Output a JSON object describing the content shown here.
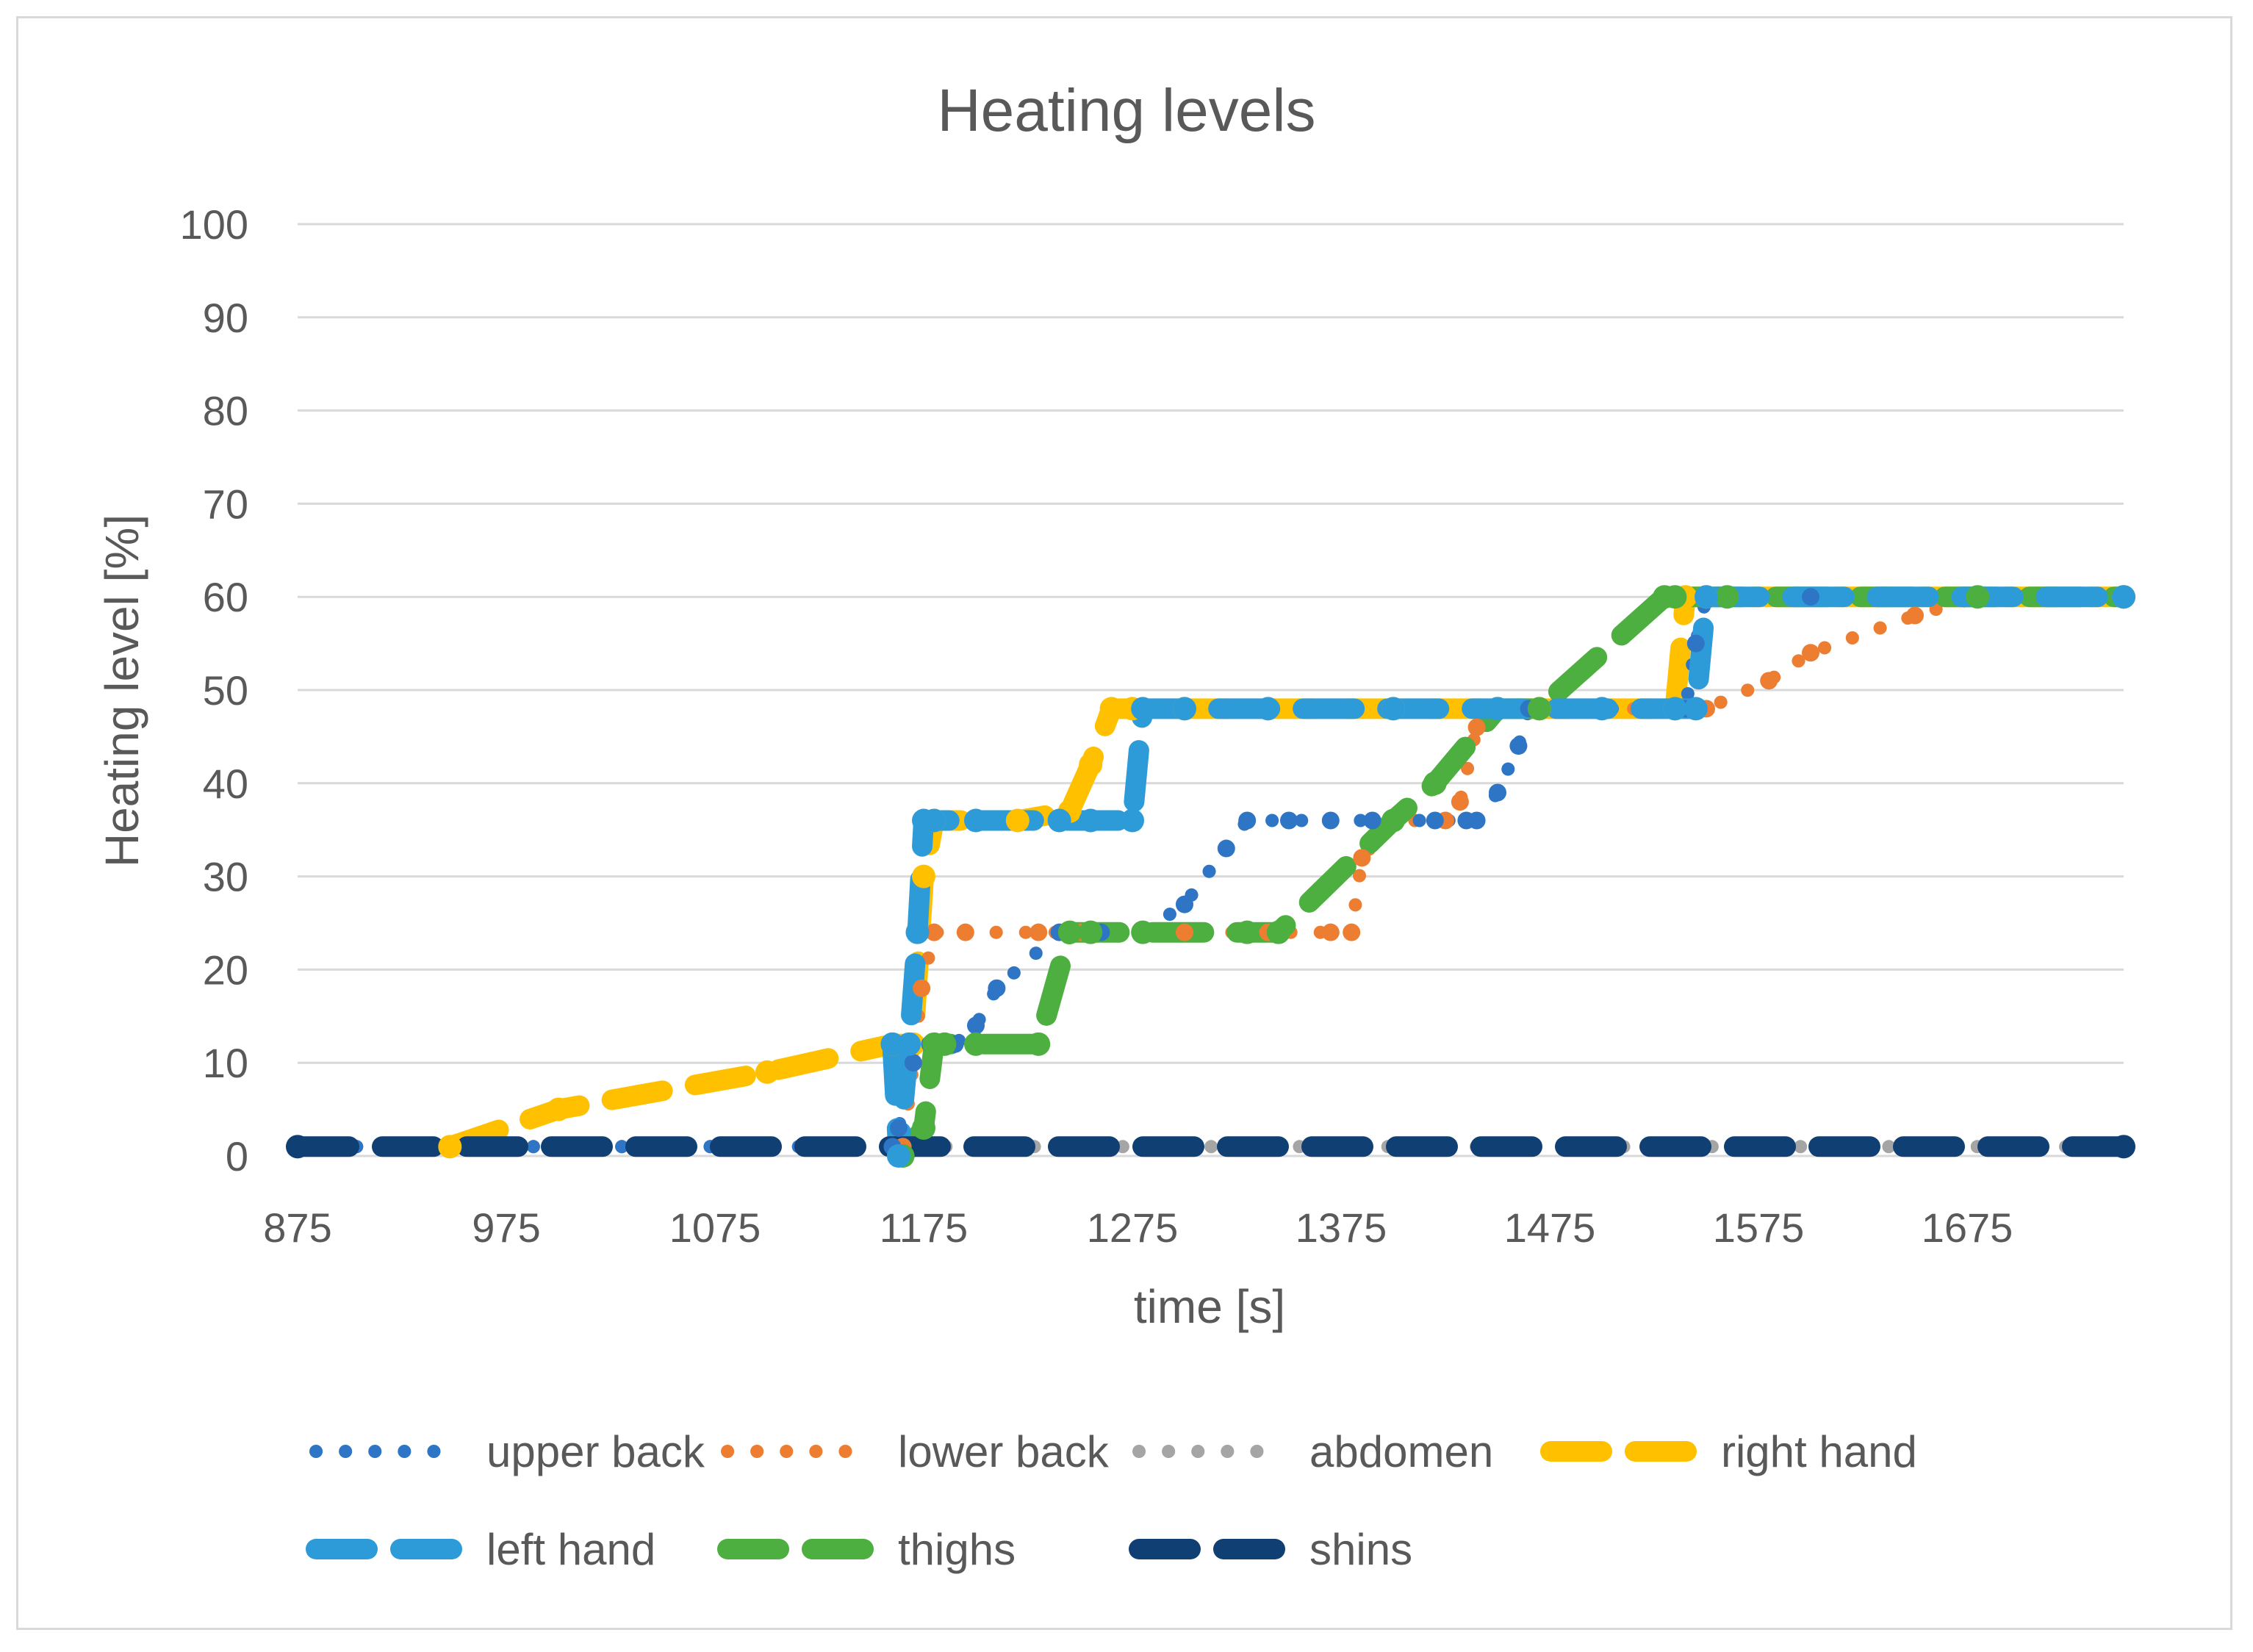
{
  "chart_data": {
    "type": "line",
    "title": "Heating levels",
    "xlabel": "time [s]",
    "ylabel": "Heating level [%]",
    "xlim": [
      875,
      1750
    ],
    "ylim": [
      0,
      100
    ],
    "x_ticks": [
      "875",
      "975",
      "1075",
      "1175",
      "1275",
      "1375",
      "1475",
      "1575",
      "1675"
    ],
    "y_ticks": [
      "0",
      "10",
      "20",
      "30",
      "40",
      "50",
      "60",
      "70",
      "80",
      "90",
      "100"
    ],
    "grid": "horizontal",
    "legend_position": "bottom",
    "series": [
      {
        "name": "upper back",
        "color": "#2e75c6",
        "style": "dotted",
        "x": [
          875,
          1160,
          1163,
          1170,
          1178,
          1190,
          1200,
          1210,
          1240,
          1260,
          1280,
          1300,
          1320,
          1330,
          1350,
          1370,
          1390,
          1420,
          1435,
          1440,
          1450,
          1460,
          1465,
          1540,
          1545,
          1550,
          1600,
          1750
        ],
        "y": [
          1,
          1,
          3,
          10,
          12,
          12,
          14,
          18,
          24,
          24,
          24,
          27,
          33,
          36,
          36,
          36,
          36,
          36,
          36,
          36,
          39,
          44,
          48,
          48,
          55,
          60,
          60,
          60
        ]
      },
      {
        "name": "lower back",
        "color": "#ed7d31",
        "style": "dotted",
        "x": [
          875,
          1165,
          1170,
          1174,
          1180,
          1195,
          1230,
          1250,
          1300,
          1340,
          1370,
          1380,
          1385,
          1400,
          1425,
          1432,
          1440,
          1450,
          1500,
          1550,
          1580,
          1600,
          1650,
          1680,
          1750
        ],
        "y": [
          1,
          1,
          10,
          18,
          24,
          24,
          24,
          24,
          24,
          24,
          24,
          24,
          32,
          36,
          36,
          38,
          46,
          48,
          48,
          48,
          51,
          54,
          58,
          60,
          60
        ]
      },
      {
        "name": "abdomen",
        "color": "#a5a5a5",
        "style": "dotted",
        "x": [
          875,
          1750
        ],
        "y": [
          1,
          1
        ]
      },
      {
        "name": "right hand",
        "color": "#ffc000",
        "style": "dashed",
        "x": [
          948,
          1000,
          1100,
          1160,
          1170,
          1175,
          1180,
          1220,
          1245,
          1255,
          1265,
          1275,
          1300,
          1400,
          1470,
          1535,
          1540,
          1550,
          1750
        ],
        "y": [
          1,
          5,
          9,
          12,
          12,
          30,
          36,
          36,
          37,
          42,
          48,
          48,
          48,
          48,
          48,
          48,
          60,
          60,
          60
        ]
      },
      {
        "name": "left hand",
        "color": "#2e9bd9",
        "style": "dashed",
        "x": [
          1160,
          1163,
          1168,
          1172,
          1175,
          1180,
          1200,
          1240,
          1255,
          1275,
          1280,
          1300,
          1340,
          1400,
          1450,
          1500,
          1535,
          1545,
          1550,
          1750
        ],
        "y": [
          12,
          0,
          12,
          24,
          36,
          36,
          36,
          36,
          36,
          36,
          48,
          48,
          48,
          48,
          48,
          48,
          48,
          48,
          60,
          60
        ]
      },
      {
        "name": "thighs",
        "color": "#4caf3f",
        "style": "dashed",
        "x": [
          1165,
          1175,
          1180,
          1185,
          1200,
          1230,
          1245,
          1255,
          1280,
          1330,
          1345,
          1400,
          1420,
          1450,
          1470,
          1530,
          1535,
          1560,
          1680,
          1750
        ],
        "y": [
          0,
          3,
          12,
          12,
          12,
          12,
          24,
          24,
          24,
          24,
          24,
          36,
          40,
          48,
          48,
          60,
          60,
          60,
          60,
          60
        ]
      },
      {
        "name": "shins",
        "color": "#103f73",
        "style": "dashed",
        "x": [
          875,
          1750
        ],
        "y": [
          1,
          1
        ]
      }
    ]
  }
}
